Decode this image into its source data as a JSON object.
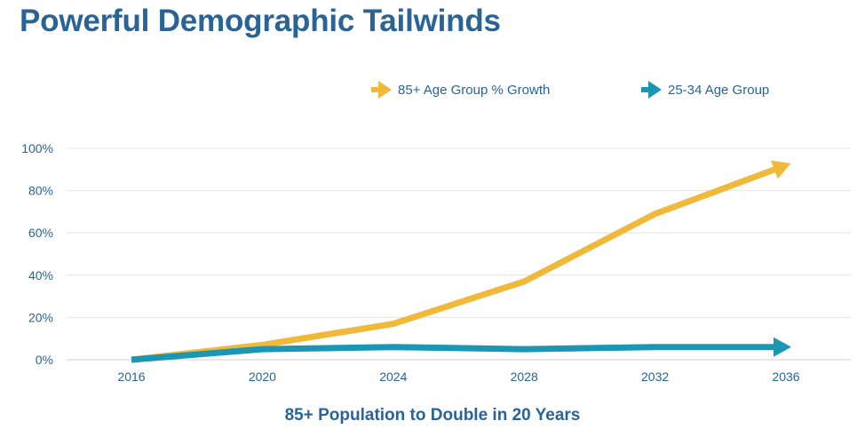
{
  "chart_data": {
    "type": "line",
    "title": "Powerful Demographic Tailwinds",
    "subtitle": "85+ Population to Double in 20 Years",
    "xlabel": "",
    "ylabel": "",
    "categories": [
      "2016",
      "2020",
      "2024",
      "2028",
      "2032",
      "2036"
    ],
    "ylim": [
      0,
      100
    ],
    "yticks": [
      "0%",
      "20%",
      "40%",
      "60%",
      "80%",
      "100%"
    ],
    "yticks_values": [
      0,
      20,
      40,
      60,
      80,
      100
    ],
    "grid": true,
    "legend_position": "top-right",
    "series": [
      {
        "name": "85+ Age Group % Growth",
        "color": "#f0b93a",
        "values": [
          0,
          7,
          17,
          37,
          69,
          92
        ]
      },
      {
        "name": "25-34 Age Group",
        "color": "#1b97b5",
        "values": [
          0,
          5,
          6,
          5,
          6,
          6
        ]
      }
    ]
  }
}
